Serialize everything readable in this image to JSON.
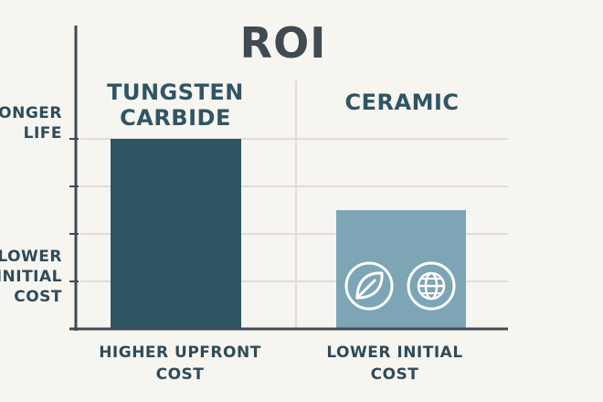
{
  "chart_data": {
    "type": "bar",
    "title": "ROI",
    "categories": [
      "TUNGSTEN\nCARBIDE",
      "CERAMIC"
    ],
    "category_labels_bottom": [
      "HIGHER UPFRONT\nCOST",
      "LOWER INITIAL\nCOST"
    ],
    "y_tick_labels": [
      "ONGER\nLIFE",
      "LOWER\nINITIAL\nCOST"
    ],
    "values": [
      4,
      2.5
    ],
    "ylim": [
      0,
      5
    ],
    "grid": true,
    "legend": "none",
    "colors": [
      "#2f5563",
      "#7da5b5"
    ],
    "icons_on_second_bar": [
      "leaf-icon",
      "globe-icon"
    ]
  },
  "colors": {
    "background": "#f7f5f0",
    "axis": "#3f4a52",
    "grid": "#e0ddd6",
    "text": "#2f4b5a"
  }
}
